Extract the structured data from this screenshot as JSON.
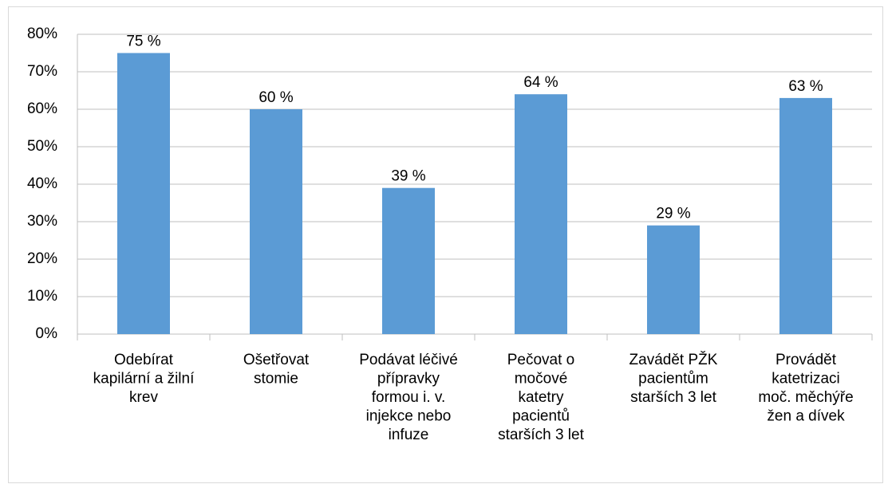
{
  "chart_data": {
    "type": "bar",
    "categories": [
      "Odebírat\nkapilární a žilní\nkrev",
      "Ošetřovat\nstomie",
      "Podávat léčivé\npřípravky\nformou i. v.\ninjekce nebo\ninfuze",
      "Pečovat o\nmočové\nkatetry\npacientů\nstarších 3 let",
      "Zavádět PŽK\npacientům\nstarších 3 let",
      "Provádět\nkatetrizaci\nmoč. měchýře\nžen a dívek"
    ],
    "values": [
      75,
      60,
      39,
      64,
      29,
      63
    ],
    "value_labels": [
      "75 %",
      "60 %",
      "39 %",
      "64 %",
      "29 %",
      "63 %"
    ],
    "color": "#5b9bd5",
    "ylim": [
      0,
      80
    ],
    "yticks": [
      {
        "value": 0,
        "label": "0%"
      },
      {
        "value": 10,
        "label": "10%"
      },
      {
        "value": 20,
        "label": "20%"
      },
      {
        "value": 30,
        "label": "30%"
      },
      {
        "value": 40,
        "label": "40%"
      },
      {
        "value": 50,
        "label": "50%"
      },
      {
        "value": 60,
        "label": "60%"
      },
      {
        "value": 70,
        "label": "70%"
      },
      {
        "value": 80,
        "label": "80%"
      }
    ],
    "grid": true
  }
}
